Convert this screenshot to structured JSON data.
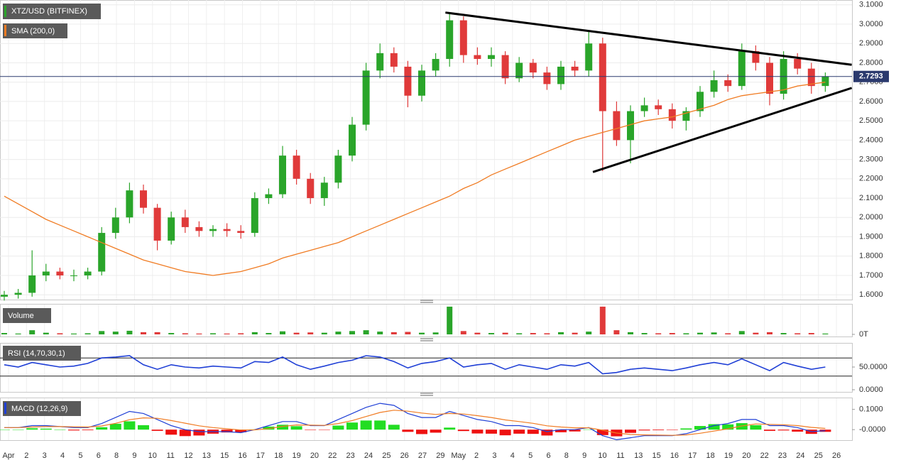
{
  "chart_data": {
    "type": "candlestick",
    "title": "XTZ/USD (BITFINEX)",
    "ylim": [
      1.575,
      3.125
    ],
    "yticks": [
      {
        "value": 1.6,
        "label": "1.6000"
      },
      {
        "value": 1.7,
        "label": "1.7000"
      },
      {
        "value": 1.8,
        "label": "1.8000"
      },
      {
        "value": 1.9,
        "label": "1.9000"
      },
      {
        "value": 2.0,
        "label": "2.0000"
      },
      {
        "value": 2.1,
        "label": "2.1000"
      },
      {
        "value": 2.2,
        "label": "2.2000"
      },
      {
        "value": 2.3,
        "label": "2.3000"
      },
      {
        "value": 2.4,
        "label": "2.4000"
      },
      {
        "value": 2.5,
        "label": "2.5000"
      },
      {
        "value": 2.6,
        "label": "2.6000"
      },
      {
        "value": 2.7,
        "label": "2.7000"
      },
      {
        "value": 2.8,
        "label": "2.8000"
      },
      {
        "value": 2.9,
        "label": "2.9000"
      },
      {
        "value": 3.0,
        "label": "3.0000"
      },
      {
        "value": 3.1,
        "label": "3.1000"
      }
    ],
    "grid": true,
    "last_price": 2.7293,
    "last_price_color": "#2b3a6e",
    "up_color": "#2aa52a",
    "down_color": "#e03a3a",
    "x_labels": [
      "Apr",
      "2",
      "3",
      "4",
      "5",
      "6",
      "8",
      "9",
      "10",
      "11",
      "12",
      "13",
      "15",
      "16",
      "17",
      "18",
      "19",
      "20",
      "22",
      "23",
      "24",
      "25",
      "26",
      "27",
      "29",
      "May",
      "2",
      "3",
      "4",
      "5",
      "6",
      "8",
      "9",
      "10",
      "11",
      "13",
      "15",
      "16",
      "17",
      "18",
      "19",
      "20",
      "22",
      "23",
      "24",
      "25",
      "26"
    ],
    "ohlc": {
      "open": [
        1.59,
        1.6,
        1.61,
        1.7,
        1.72,
        1.7,
        1.7,
        1.72,
        1.92,
        2.0,
        2.14,
        2.05,
        1.88,
        2.0,
        1.95,
        1.93,
        1.94,
        1.93,
        1.92,
        2.1,
        2.12,
        2.32,
        2.2,
        2.1,
        2.18,
        2.32,
        2.48,
        2.76,
        2.85,
        2.78,
        2.63,
        2.76,
        2.82,
        3.02,
        2.84,
        2.82,
        2.84,
        2.72,
        2.8,
        2.75,
        2.69,
        2.78,
        2.76,
        2.9,
        2.55,
        2.4,
        2.55,
        2.58,
        2.56,
        2.5,
        2.55,
        2.65,
        2.71,
        2.68,
        2.86,
        2.8,
        2.64,
        2.82,
        2.77,
        2.68
      ],
      "high": [
        1.62,
        1.63,
        1.83,
        1.76,
        1.74,
        1.73,
        1.74,
        1.95,
        2.05,
        2.18,
        2.17,
        2.07,
        2.03,
        2.04,
        1.98,
        1.96,
        1.97,
        1.96,
        2.13,
        2.15,
        2.37,
        2.35,
        2.23,
        2.21,
        2.35,
        2.52,
        2.8,
        2.9,
        2.88,
        2.81,
        2.79,
        2.85,
        3.06,
        3.04,
        2.88,
        2.88,
        2.86,
        2.83,
        2.82,
        2.78,
        2.81,
        2.81,
        2.96,
        2.93,
        2.6,
        2.58,
        2.62,
        2.61,
        2.59,
        2.57,
        2.68,
        2.76,
        2.74,
        2.9,
        2.89,
        2.83,
        2.86,
        2.85,
        2.8,
        2.75
      ],
      "low": [
        1.57,
        1.58,
        1.59,
        1.67,
        1.68,
        1.67,
        1.68,
        1.7,
        1.89,
        1.97,
        2.02,
        1.83,
        1.86,
        1.92,
        1.9,
        1.9,
        1.9,
        1.89,
        1.9,
        2.07,
        2.1,
        2.17,
        2.07,
        2.06,
        2.15,
        2.29,
        2.45,
        2.72,
        2.75,
        2.57,
        2.6,
        2.73,
        2.78,
        2.8,
        2.79,
        2.78,
        2.69,
        2.7,
        2.72,
        2.66,
        2.66,
        2.73,
        2.73,
        2.24,
        2.37,
        2.28,
        2.52,
        2.53,
        2.46,
        2.45,
        2.52,
        2.62,
        2.65,
        2.66,
        2.76,
        2.58,
        2.61,
        2.74,
        2.64,
        2.65
      ],
      "close": [
        1.6,
        1.61,
        1.7,
        1.72,
        1.7,
        1.7,
        1.72,
        1.92,
        2.0,
        2.14,
        2.05,
        1.88,
        2.0,
        1.95,
        1.93,
        1.94,
        1.93,
        1.92,
        2.1,
        2.12,
        2.32,
        2.2,
        2.1,
        2.18,
        2.32,
        2.48,
        2.76,
        2.85,
        2.78,
        2.63,
        2.76,
        2.82,
        3.02,
        2.84,
        2.82,
        2.84,
        2.72,
        2.8,
        2.75,
        2.69,
        2.78,
        2.76,
        2.9,
        2.55,
        2.4,
        2.55,
        2.58,
        2.56,
        2.5,
        2.55,
        2.65,
        2.71,
        2.68,
        2.86,
        2.8,
        2.64,
        2.82,
        2.77,
        2.68,
        2.73
      ]
    },
    "sma": {
      "name": "SMA (200,0)",
      "color": "#f07b22",
      "values": [
        2.11,
        2.07,
        2.03,
        1.99,
        1.96,
        1.93,
        1.9,
        1.87,
        1.84,
        1.81,
        1.78,
        1.76,
        1.74,
        1.72,
        1.71,
        1.7,
        1.71,
        1.72,
        1.74,
        1.76,
        1.79,
        1.81,
        1.83,
        1.85,
        1.87,
        1.9,
        1.93,
        1.96,
        1.99,
        2.02,
        2.05,
        2.08,
        2.11,
        2.15,
        2.18,
        2.22,
        2.25,
        2.28,
        2.31,
        2.34,
        2.37,
        2.4,
        2.42,
        2.44,
        2.46,
        2.48,
        2.5,
        2.51,
        2.52,
        2.54,
        2.56,
        2.58,
        2.61,
        2.63,
        2.64,
        2.65,
        2.66,
        2.68,
        2.69,
        2.7
      ]
    },
    "trendlines": [
      {
        "x": [
          31.7,
          60.9
        ],
        "y": [
          3.06,
          2.79
        ]
      },
      {
        "x": [
          42.3,
          60.9
        ],
        "y": [
          2.235,
          2.67
        ]
      }
    ],
    "volume": {
      "name": "Volume",
      "ylim": [
        0,
        10.5
      ],
      "yticks": [
        {
          "value": 0,
          "label": "0T"
        }
      ],
      "values": [
        0.5,
        0.3,
        1.5,
        0.6,
        0.4,
        0.3,
        0.4,
        1.2,
        1.0,
        1.3,
        0.8,
        0.8,
        0.5,
        0.4,
        0.3,
        0.4,
        0.3,
        0.4,
        0.8,
        0.5,
        1.1,
        0.6,
        0.7,
        0.6,
        1.0,
        1.2,
        1.5,
        1.0,
        0.8,
        0.9,
        0.6,
        0.7,
        10,
        1.2,
        0.6,
        0.5,
        0.6,
        0.4,
        0.5,
        0.4,
        0.8,
        0.6,
        1.0,
        10,
        1.5,
        0.8,
        0.5,
        0.4,
        0.5,
        0.4,
        0.6,
        0.7,
        0.4,
        1.2,
        0.6,
        0.8,
        0.5,
        0.4,
        0.5,
        0.3
      ]
    },
    "rsi": {
      "name": "RSI (14,70,30,1)",
      "color": "#1f3fd6",
      "ylim": [
        -4.7,
        101.6
      ],
      "yticks": [
        {
          "value": 50,
          "label": "50.0000"
        },
        {
          "value": 0,
          "label": "0.0000"
        }
      ],
      "levels": [
        70,
        30
      ],
      "values": [
        55,
        50,
        60,
        55,
        50,
        52,
        58,
        70,
        72,
        75,
        55,
        45,
        55,
        50,
        48,
        52,
        50,
        48,
        62,
        60,
        72,
        55,
        45,
        52,
        60,
        65,
        75,
        72,
        62,
        48,
        58,
        62,
        70,
        50,
        55,
        58,
        45,
        55,
        50,
        45,
        55,
        52,
        60,
        35,
        38,
        45,
        48,
        45,
        42,
        48,
        55,
        60,
        55,
        68,
        55,
        42,
        60,
        52,
        45,
        50
      ]
    },
    "macd": {
      "name": "MACD (12,26,9)",
      "ylim": [
        -0.052,
        0.155
      ],
      "yticks": [
        {
          "value": 0.1,
          "label": "0.1000"
        },
        {
          "value": 0,
          "label": "-0.0000"
        }
      ],
      "macd": {
        "color": "#1f3fd6",
        "values": [
          0.01,
          0.01,
          0.02,
          0.02,
          0.015,
          0.01,
          0.01,
          0.03,
          0.06,
          0.09,
          0.08,
          0.05,
          0.02,
          0,
          -0.01,
          -0.01,
          -0.01,
          -0.015,
          0,
          0.02,
          0.04,
          0.04,
          0.02,
          0.02,
          0.05,
          0.08,
          0.11,
          0.13,
          0.12,
          0.08,
          0.06,
          0.06,
          0.09,
          0.07,
          0.05,
          0.04,
          0.02,
          0.02,
          0.01,
          -0.01,
          0,
          0,
          0.01,
          -0.03,
          -0.05,
          -0.04,
          -0.03,
          -0.03,
          -0.03,
          -0.02,
          0,
          0.02,
          0.03,
          0.05,
          0.05,
          0.02,
          0.02,
          0.01,
          -0.01,
          -0.005
        ]
      },
      "signal": {
        "color": "#f07b22",
        "values": [
          0.01,
          0.01,
          0.013,
          0.015,
          0.015,
          0.014,
          0.013,
          0.018,
          0.031,
          0.049,
          0.058,
          0.056,
          0.045,
          0.032,
          0.019,
          0.01,
          0.004,
          -0.002,
          -0.001,
          0.005,
          0.016,
          0.023,
          0.022,
          0.021,
          0.03,
          0.045,
          0.065,
          0.085,
          0.096,
          0.091,
          0.082,
          0.075,
          0.08,
          0.077,
          0.069,
          0.06,
          0.048,
          0.04,
          0.031,
          0.019,
          0.013,
          0.009,
          0.009,
          -0.003,
          -0.017,
          -0.024,
          -0.026,
          -0.027,
          -0.028,
          -0.026,
          -0.018,
          -0.007,
          0.004,
          0.018,
          0.028,
          0.026,
          0.024,
          0.02,
          0.011,
          0.006
        ]
      },
      "histogram": {
        "up_color": "#22dd22",
        "down_color": "#ee1111",
        "values": [
          0,
          0,
          0.007,
          0.005,
          0,
          -0.004,
          -0.003,
          0.012,
          0.029,
          0.041,
          0.022,
          -0.006,
          -0.025,
          -0.032,
          -0.029,
          -0.02,
          -0.014,
          -0.013,
          0.001,
          0.015,
          0.024,
          0.017,
          -0.002,
          -0.001,
          0.02,
          0.035,
          0.045,
          0.045,
          0.024,
          -0.011,
          -0.022,
          -0.015,
          0.01,
          -0.007,
          -0.019,
          -0.02,
          -0.028,
          -0.02,
          -0.021,
          -0.029,
          -0.013,
          -0.009,
          0.001,
          -0.027,
          -0.033,
          -0.016,
          -0.004,
          -0.003,
          -0.002,
          0.006,
          0.018,
          0.027,
          0.026,
          0.032,
          0.022,
          -0.006,
          -0.004,
          -0.01,
          -0.021,
          -0.011
        ]
      }
    }
  }
}
